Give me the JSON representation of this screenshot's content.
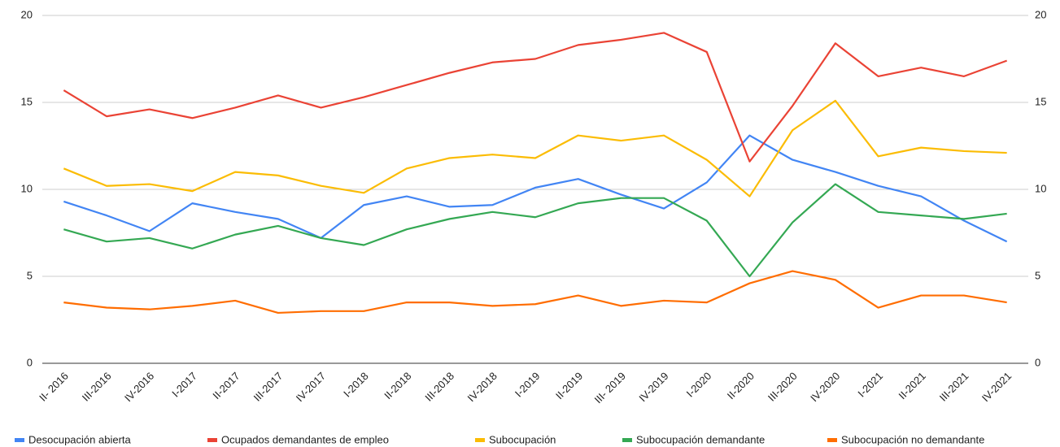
{
  "chart_data": {
    "type": "line",
    "categories": [
      "II- 2016",
      "III-2016",
      "IV-2016",
      "I-2017",
      "II-2017",
      "III-2017",
      "IV-2017",
      "I-2018",
      "II-2018",
      "III-2018",
      "IV-2018",
      "I-2019",
      "II-2019",
      "III- 2019",
      "IV-2019",
      "I-2020",
      "II-2020",
      "III-2020",
      "IV-2020",
      "I-2021",
      "II-2021",
      "III-2021",
      "IV-2021"
    ],
    "series": [
      {
        "name": "Desocupación abierta",
        "color": "#4285f4",
        "values": [
          9.3,
          8.5,
          7.6,
          9.2,
          8.7,
          8.3,
          7.2,
          9.1,
          9.6,
          9.0,
          9.1,
          10.1,
          10.6,
          9.7,
          8.9,
          10.4,
          13.1,
          11.7,
          11.0,
          10.2,
          9.6,
          8.2,
          7.0
        ]
      },
      {
        "name": "Ocupados demandantes de empleo",
        "color": "#ea4335",
        "values": [
          15.7,
          14.2,
          14.6,
          14.1,
          14.7,
          15.4,
          14.7,
          15.3,
          16.0,
          16.7,
          17.3,
          17.5,
          18.3,
          18.6,
          19.0,
          17.9,
          11.6,
          14.8,
          18.4,
          16.5,
          17.0,
          16.5,
          17.4
        ]
      },
      {
        "name": "Subocupación",
        "color": "#fbbc04",
        "values": [
          11.2,
          10.2,
          10.3,
          9.9,
          11.0,
          10.8,
          10.2,
          9.8,
          11.2,
          11.8,
          12.0,
          11.8,
          13.1,
          12.8,
          13.1,
          11.7,
          9.6,
          13.4,
          15.1,
          11.9,
          12.4,
          12.2,
          12.1
        ]
      },
      {
        "name": "Subocupación demandante",
        "color": "#34a853",
        "values": [
          7.7,
          7.0,
          7.2,
          6.6,
          7.4,
          7.9,
          7.2,
          6.8,
          7.7,
          8.3,
          8.7,
          8.4,
          9.2,
          9.5,
          9.5,
          8.2,
          5.0,
          8.1,
          10.3,
          8.7,
          8.5,
          8.3,
          8.6
        ]
      },
      {
        "name": "Subocupación no demandante",
        "color": "#ff6d01",
        "values": [
          3.5,
          3.2,
          3.1,
          3.3,
          3.6,
          2.9,
          3.0,
          3.0,
          3.5,
          3.5,
          3.3,
          3.4,
          3.9,
          3.3,
          3.6,
          3.5,
          4.6,
          5.3,
          4.8,
          3.2,
          3.9,
          3.9,
          3.5
        ]
      }
    ],
    "ylim": [
      0,
      20
    ],
    "yticks": [
      0,
      5,
      10,
      15,
      20
    ],
    "y2lim": [
      0,
      20
    ],
    "y2ticks": [
      0,
      5,
      10,
      15,
      20
    ],
    "grid": true,
    "legend": "bottom"
  }
}
